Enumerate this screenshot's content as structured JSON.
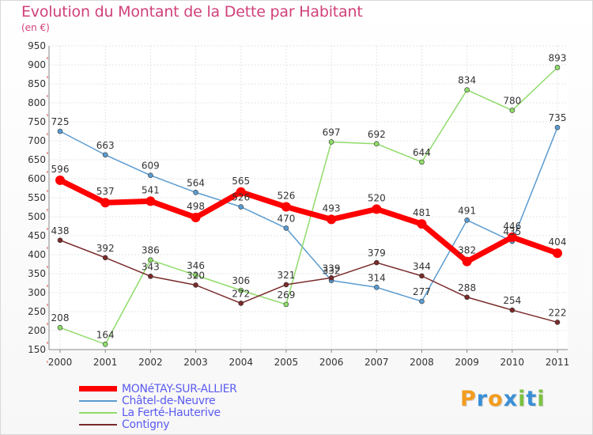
{
  "header": {
    "title": "Evolution du Montant de la Dette par Habitant",
    "subtitle": "(en €)"
  },
  "brand": {
    "letters": [
      "P",
      "r",
      "o",
      "x",
      "i",
      "t",
      "i"
    ],
    "colors": [
      "#f39c1f",
      "#3a8fd6",
      "#f39c1f",
      "#3a8fd6",
      "#7cc242",
      "#3a8fd6",
      "#7cc242"
    ]
  },
  "chart_data": {
    "type": "line",
    "title": "Evolution du Montant de la Dette par Habitant",
    "subtitle": "(en €)",
    "xlabel": "",
    "ylabel": "",
    "x": [
      "2000",
      "2001",
      "2002",
      "2003",
      "2004",
      "2005",
      "2006",
      "2007",
      "2008",
      "2009",
      "2010",
      "2011"
    ],
    "ylim": [
      150,
      950
    ],
    "yticks": [
      150,
      200,
      250,
      300,
      350,
      400,
      450,
      500,
      550,
      600,
      650,
      700,
      750,
      800,
      850,
      900,
      950
    ],
    "grid": true,
    "legend_position": "bottom-left",
    "series": [
      {
        "name": "MONéTAY-SUR-ALLIER",
        "color": "#ff0000",
        "width": 7,
        "values": [
          596,
          537,
          541,
          498,
          565,
          526,
          493,
          520,
          481,
          382,
          446,
          404
        ],
        "labels": [
          "596",
          "537",
          "541",
          "498",
          "565",
          "526",
          "493",
          "520",
          "481",
          "382",
          "446",
          "404"
        ]
      },
      {
        "name": "Châtel-de-Neuvre",
        "color": "#5a9bd0",
        "width": 1.5,
        "values": [
          725,
          663,
          609,
          564,
          526,
          470,
          332,
          314,
          277,
          491,
          435,
          735
        ],
        "labels": [
          "725",
          "663",
          "609",
          "564",
          "526",
          "470",
          "332",
          "314",
          "277",
          "491",
          "435",
          "735"
        ]
      },
      {
        "name": "La Ferté-Hauterive",
        "color": "#8fdc6a",
        "width": 1.5,
        "values": [
          208,
          164,
          386,
          346,
          306,
          269,
          697,
          692,
          644,
          834,
          780,
          893
        ],
        "labels": [
          "208",
          "164",
          "386",
          "346",
          "306",
          "269",
          "697",
          "692",
          "644",
          "834",
          "780",
          "893"
        ]
      },
      {
        "name": "Contigny",
        "color": "#7a2a2a",
        "width": 1.5,
        "values": [
          438,
          392,
          343,
          320,
          272,
          321,
          339,
          379,
          344,
          288,
          254,
          222
        ],
        "labels": [
          "438",
          "392",
          "343",
          "320",
          "272",
          "321",
          "339",
          "379",
          "344",
          "288",
          "254",
          "222"
        ]
      }
    ]
  }
}
